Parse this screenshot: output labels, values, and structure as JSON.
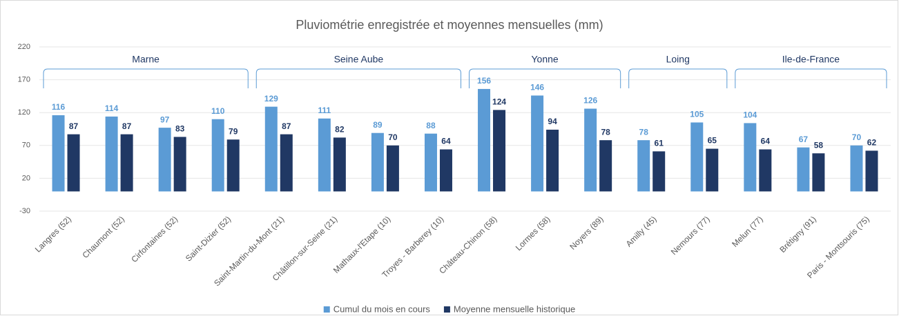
{
  "chart_data": {
    "type": "bar",
    "title": "Pluviométrie enregistrée et moyennes mensuelles (mm)",
    "categories": [
      "Langres (52)",
      "Chaumont (52)",
      "Cirfontaines (52)",
      "Saint-Dizier (52)",
      "Saint-Martin-du-Mont (21)",
      "Châtillon-sur-Seine (21)",
      "Mathaux-l'Etape (10)",
      "Troyes - Barberey (10)",
      "Château-Chinon (58)",
      "Lormes (58)",
      "Noyers (89)",
      "Amilly (45)",
      "Nemours (77)",
      "Melun (77)",
      "Brétigny (91)",
      "Paris - Montsouris (75)"
    ],
    "series": [
      {
        "name": "Cumul du mois en cours",
        "color": "#5b9bd5",
        "values": [
          116,
          114,
          97,
          110,
          129,
          111,
          89,
          88,
          156,
          146,
          126,
          78,
          105,
          104,
          67,
          70
        ]
      },
      {
        "name": "Moyenne mensuelle historique",
        "color": "#203864",
        "values": [
          87,
          87,
          83,
          79,
          87,
          82,
          70,
          64,
          124,
          94,
          78,
          61,
          65,
          64,
          58,
          62
        ]
      }
    ],
    "groups": [
      {
        "name": "Marne",
        "members": [
          "Langres (52)",
          "Chaumont (52)",
          "Cirfontaines (52)",
          "Saint-Dizier (52)"
        ]
      },
      {
        "name": "Seine Aube",
        "members": [
          "Saint-Martin-du-Mont (21)",
          "Châtillon-sur-Seine (21)",
          "Mathaux-l'Etape (10)",
          "Troyes - Barberey (10)"
        ]
      },
      {
        "name": "Yonne",
        "members": [
          "Château-Chinon (58)",
          "Lormes (58)",
          "Noyers (89)"
        ]
      },
      {
        "name": "Loing",
        "members": [
          "Amilly (45)",
          "Nemours (77)"
        ]
      },
      {
        "name": "Ile-de-France",
        "members": [
          "Melun (77)",
          "Brétigny (91)",
          "Paris - Montsouris (75)"
        ]
      }
    ],
    "ylim": [
      -30,
      220
    ],
    "yticks": [
      -30,
      20,
      70,
      120,
      170,
      220
    ],
    "grid": true,
    "legend": "bottom"
  }
}
